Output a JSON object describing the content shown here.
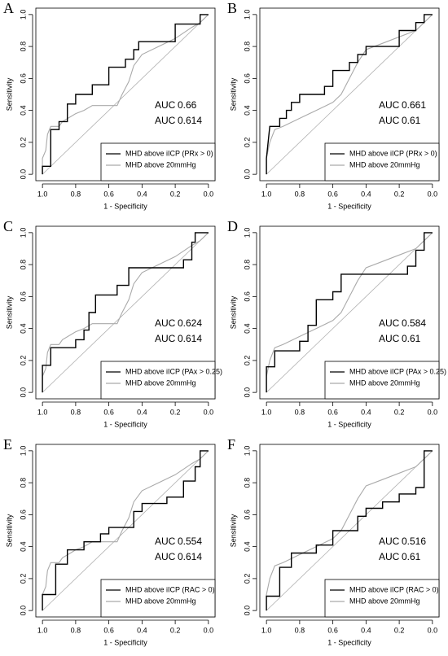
{
  "chart_data": [
    {
      "type": "line",
      "panel": "A",
      "x_label": "1 - Specificity",
      "y_label": "Sensitivity",
      "auc_label": "AUC",
      "xlim": [
        1.04,
        -0.04
      ],
      "ylim": [
        -0.04,
        1.04
      ],
      "xticks": [
        {
          "value": 1,
          "label": "1.0"
        },
        0.8,
        0.6,
        0.4,
        0.2,
        {
          "value": 0,
          "label": "0.0"
        }
      ],
      "yticks": [
        {
          "value": 0,
          "label": "0.0"
        },
        0.2,
        0.4,
        0.6,
        0.8,
        {
          "value": 1,
          "label": "1.0"
        }
      ],
      "series": [
        {
          "name": "MHD above iICP (PRx > 0)",
          "color": "#000000",
          "auc": 0.66,
          "x": [
            1,
            1,
            0.95,
            0.95,
            0.9,
            0.9,
            0.85,
            0.85,
            0.8,
            0.8,
            0.7,
            0.7,
            0.6,
            0.6,
            0.5,
            0.5,
            0.45,
            0.45,
            0.42,
            0.42,
            0.2,
            0.2,
            0.05,
            0.05,
            0
          ],
          "y": [
            0,
            0.05,
            0.05,
            0.28,
            0.28,
            0.33,
            0.33,
            0.44,
            0.44,
            0.5,
            0.5,
            0.56,
            0.56,
            0.67,
            0.67,
            0.72,
            0.72,
            0.78,
            0.78,
            0.83,
            0.83,
            0.94,
            0.94,
            1,
            1
          ]
        },
        {
          "name": "MHD above 20mmHg",
          "color": "#aaaaaa",
          "auc": 0.614,
          "x": [
            1,
            1,
            0.98,
            0.97,
            0.95,
            0.9,
            0.88,
            0.8,
            0.75,
            0.7,
            0.55,
            0.52,
            0.48,
            0.45,
            0.4,
            0.3,
            0.2,
            0.1,
            0.05,
            0
          ],
          "y": [
            0,
            0.1,
            0.15,
            0.25,
            0.3,
            0.3,
            0.33,
            0.38,
            0.4,
            0.43,
            0.43,
            0.5,
            0.58,
            0.68,
            0.75,
            0.8,
            0.85,
            0.92,
            0.95,
            1
          ]
        }
      ]
    },
    {
      "type": "line",
      "panel": "B",
      "x_label": "1 - Specificity",
      "y_label": "Sensitivity",
      "auc_label": "AUC",
      "xlim": [
        1.04,
        -0.04
      ],
      "ylim": [
        -0.04,
        1.04
      ],
      "xticks": [
        {
          "value": 1,
          "label": "1.0"
        },
        0.8,
        0.6,
        0.4,
        0.2,
        {
          "value": 0,
          "label": "0.0"
        }
      ],
      "yticks": [
        {
          "value": 0,
          "label": "0.0"
        },
        0.2,
        0.4,
        0.6,
        0.8,
        {
          "value": 1,
          "label": "1.0"
        }
      ],
      "series": [
        {
          "name": "MHD above iICP (PRx > 0)",
          "color": "#000000",
          "auc": 0.661,
          "x": [
            1,
            1,
            0.98,
            0.92,
            0.92,
            0.88,
            0.88,
            0.85,
            0.85,
            0.8,
            0.8,
            0.65,
            0.65,
            0.6,
            0.6,
            0.5,
            0.5,
            0.45,
            0.45,
            0.4,
            0.4,
            0.2,
            0.2,
            0.1,
            0.1,
            0.05,
            0.05,
            0
          ],
          "y": [
            0,
            0.1,
            0.3,
            0.3,
            0.35,
            0.35,
            0.4,
            0.4,
            0.45,
            0.45,
            0.5,
            0.5,
            0.55,
            0.55,
            0.65,
            0.65,
            0.7,
            0.7,
            0.75,
            0.75,
            0.8,
            0.8,
            0.9,
            0.9,
            0.95,
            0.95,
            1,
            1
          ]
        },
        {
          "name": "MHD above 20mmHg",
          "color": "#aaaaaa",
          "auc": 0.61,
          "x": [
            1,
            1,
            0.98,
            0.95,
            0.9,
            0.8,
            0.7,
            0.6,
            0.55,
            0.5,
            0.45,
            0.4,
            0.3,
            0.2,
            0.1,
            0.05,
            0
          ],
          "y": [
            0,
            0.1,
            0.2,
            0.28,
            0.3,
            0.35,
            0.4,
            0.45,
            0.5,
            0.6,
            0.7,
            0.78,
            0.82,
            0.86,
            0.9,
            0.95,
            1
          ]
        }
      ]
    },
    {
      "type": "line",
      "panel": "C",
      "x_label": "1 - Specificity",
      "y_label": "Sensitivity",
      "auc_label": "AUC",
      "xlim": [
        1.04,
        -0.04
      ],
      "ylim": [
        -0.04,
        1.04
      ],
      "xticks": [
        {
          "value": 1,
          "label": "1.0"
        },
        0.8,
        0.6,
        0.4,
        0.2,
        {
          "value": 0,
          "label": "0.0"
        }
      ],
      "yticks": [
        {
          "value": 0,
          "label": "0.0"
        },
        0.2,
        0.4,
        0.6,
        0.8,
        {
          "value": 1,
          "label": "1.0"
        }
      ],
      "series": [
        {
          "name": "MHD above iICP (PAx > 0.25)",
          "color": "#000000",
          "auc": 0.624,
          "x": [
            1,
            1,
            0.95,
            0.95,
            0.8,
            0.8,
            0.75,
            0.75,
            0.72,
            0.72,
            0.68,
            0.68,
            0.55,
            0.55,
            0.48,
            0.48,
            0.15,
            0.15,
            0.1,
            0.1,
            0.08,
            0.08,
            0
          ],
          "y": [
            0,
            0.17,
            0.17,
            0.28,
            0.28,
            0.33,
            0.33,
            0.39,
            0.39,
            0.5,
            0.5,
            0.61,
            0.61,
            0.67,
            0.67,
            0.78,
            0.78,
            0.83,
            0.83,
            0.94,
            0.94,
            1,
            1
          ]
        },
        {
          "name": "MHD above 20mmHg",
          "color": "#aaaaaa",
          "auc": 0.614,
          "x": [
            1,
            1,
            0.98,
            0.97,
            0.95,
            0.9,
            0.88,
            0.8,
            0.75,
            0.7,
            0.55,
            0.52,
            0.48,
            0.45,
            0.4,
            0.3,
            0.2,
            0.1,
            0.05,
            0
          ],
          "y": [
            0,
            0.1,
            0.15,
            0.25,
            0.3,
            0.3,
            0.33,
            0.38,
            0.4,
            0.43,
            0.43,
            0.5,
            0.58,
            0.68,
            0.75,
            0.8,
            0.85,
            0.92,
            0.95,
            1
          ]
        }
      ]
    },
    {
      "type": "line",
      "panel": "D",
      "x_label": "1 - Specificity",
      "y_label": "Sensitivity",
      "auc_label": "AUC",
      "xlim": [
        1.04,
        -0.04
      ],
      "ylim": [
        -0.04,
        1.04
      ],
      "xticks": [
        {
          "value": 1,
          "label": "1.0"
        },
        0.8,
        0.6,
        0.4,
        0.2,
        {
          "value": 0,
          "label": "0.0"
        }
      ],
      "yticks": [
        {
          "value": 0,
          "label": "0.0"
        },
        0.2,
        0.4,
        0.6,
        0.8,
        {
          "value": 1,
          "label": "1.0"
        }
      ],
      "series": [
        {
          "name": "MHD above iICP (PAx > 0.25)",
          "color": "#000000",
          "auc": 0.584,
          "x": [
            1,
            1,
            0.95,
            0.95,
            0.8,
            0.8,
            0.75,
            0.75,
            0.7,
            0.7,
            0.6,
            0.6,
            0.55,
            0.55,
            0.15,
            0.15,
            0.1,
            0.1,
            0.05,
            0.05,
            0
          ],
          "y": [
            0,
            0.16,
            0.16,
            0.26,
            0.26,
            0.32,
            0.32,
            0.42,
            0.42,
            0.58,
            0.58,
            0.63,
            0.63,
            0.74,
            0.74,
            0.79,
            0.79,
            0.89,
            0.89,
            1,
            1
          ]
        },
        {
          "name": "MHD above 20mmHg",
          "color": "#aaaaaa",
          "auc": 0.61,
          "x": [
            1,
            1,
            0.98,
            0.95,
            0.9,
            0.8,
            0.7,
            0.6,
            0.55,
            0.5,
            0.45,
            0.4,
            0.3,
            0.2,
            0.1,
            0.05,
            0
          ],
          "y": [
            0,
            0.1,
            0.2,
            0.28,
            0.3,
            0.35,
            0.4,
            0.45,
            0.5,
            0.6,
            0.7,
            0.78,
            0.82,
            0.86,
            0.9,
            0.95,
            1
          ]
        }
      ]
    },
    {
      "type": "line",
      "panel": "E",
      "x_label": "1 - Specificity",
      "y_label": "Sensitivity",
      "auc_label": "AUC",
      "xlim": [
        1.04,
        -0.04
      ],
      "ylim": [
        -0.04,
        1.04
      ],
      "xticks": [
        {
          "value": 1,
          "label": "1.0"
        },
        0.8,
        0.6,
        0.4,
        0.2,
        {
          "value": 0,
          "label": "0.0"
        }
      ],
      "yticks": [
        {
          "value": 0,
          "label": "0.0"
        },
        0.2,
        0.4,
        0.6,
        0.8,
        {
          "value": 1,
          "label": "1.0"
        }
      ],
      "series": [
        {
          "name": "MHD above iICP (RAC > 0)",
          "color": "#000000",
          "auc": 0.554,
          "x": [
            1,
            1,
            0.92,
            0.92,
            0.85,
            0.85,
            0.75,
            0.75,
            0.65,
            0.65,
            0.6,
            0.6,
            0.45,
            0.45,
            0.4,
            0.4,
            0.25,
            0.25,
            0.15,
            0.15,
            0.08,
            0.08,
            0.05,
            0.05,
            0
          ],
          "y": [
            0,
            0.1,
            0.1,
            0.29,
            0.29,
            0.38,
            0.38,
            0.43,
            0.43,
            0.48,
            0.48,
            0.52,
            0.52,
            0.62,
            0.62,
            0.67,
            0.67,
            0.71,
            0.71,
            0.81,
            0.81,
            0.9,
            0.9,
            1,
            1
          ]
        },
        {
          "name": "MHD above 20mmHg",
          "color": "#aaaaaa",
          "auc": 0.614,
          "x": [
            1,
            1,
            0.98,
            0.97,
            0.95,
            0.9,
            0.88,
            0.8,
            0.75,
            0.7,
            0.55,
            0.52,
            0.48,
            0.45,
            0.4,
            0.3,
            0.2,
            0.1,
            0.05,
            0
          ],
          "y": [
            0,
            0.1,
            0.15,
            0.25,
            0.3,
            0.3,
            0.33,
            0.38,
            0.4,
            0.43,
            0.43,
            0.5,
            0.58,
            0.68,
            0.75,
            0.8,
            0.85,
            0.92,
            0.95,
            1
          ]
        }
      ]
    },
    {
      "type": "line",
      "panel": "F",
      "x_label": "1 - Specificity",
      "y_label": "Sensitivity",
      "auc_label": "AUC",
      "xlim": [
        1.04,
        -0.04
      ],
      "ylim": [
        -0.04,
        1.04
      ],
      "xticks": [
        {
          "value": 1,
          "label": "1.0"
        },
        0.8,
        0.6,
        0.4,
        0.2,
        {
          "value": 0,
          "label": "0.0"
        }
      ],
      "yticks": [
        {
          "value": 0,
          "label": "0.0"
        },
        0.2,
        0.4,
        0.6,
        0.8,
        {
          "value": 1,
          "label": "1.0"
        }
      ],
      "series": [
        {
          "name": "MHD above iICP (RAC > 0)",
          "color": "#000000",
          "auc": 0.516,
          "x": [
            1,
            1,
            0.92,
            0.92,
            0.85,
            0.85,
            0.7,
            0.7,
            0.6,
            0.6,
            0.45,
            0.45,
            0.4,
            0.4,
            0.3,
            0.3,
            0.2,
            0.2,
            0.1,
            0.1,
            0.05,
            0.05,
            0
          ],
          "y": [
            0,
            0.09,
            0.09,
            0.27,
            0.27,
            0.36,
            0.36,
            0.41,
            0.41,
            0.5,
            0.5,
            0.59,
            0.59,
            0.64,
            0.64,
            0.68,
            0.68,
            0.73,
            0.73,
            0.77,
            0.77,
            1,
            1
          ]
        },
        {
          "name": "MHD above 20mmHg",
          "color": "#aaaaaa",
          "auc": 0.61,
          "x": [
            1,
            1,
            0.98,
            0.95,
            0.9,
            0.8,
            0.7,
            0.6,
            0.55,
            0.5,
            0.45,
            0.4,
            0.3,
            0.2,
            0.1,
            0.05,
            0
          ],
          "y": [
            0,
            0.1,
            0.2,
            0.28,
            0.3,
            0.35,
            0.4,
            0.45,
            0.5,
            0.6,
            0.7,
            0.78,
            0.82,
            0.86,
            0.9,
            0.95,
            1
          ]
        }
      ]
    }
  ]
}
